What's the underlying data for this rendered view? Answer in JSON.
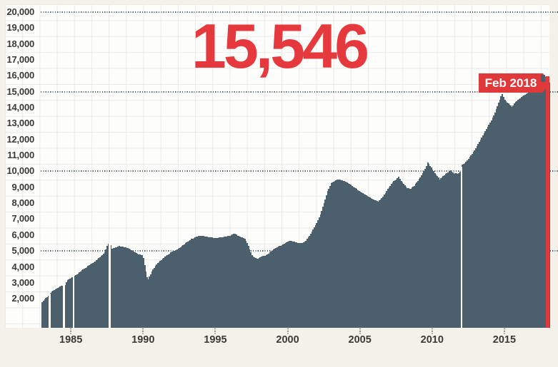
{
  "counter": {
    "value": "15,546"
  },
  "badge": {
    "label": "Feb 2018"
  },
  "colors": {
    "background": "#f4f1ea",
    "plot_background": "#fdfdfb",
    "bars": "#4c5f6c",
    "accent_red": "#e0393c",
    "counter_red": "#e5393e",
    "axis_text": "#3a3936",
    "dotted_gridline": "#54646e",
    "faint_grid": "#edeae2"
  },
  "axis": {
    "y_labels": [
      "20,000",
      "19,000",
      "18,000",
      "17,000",
      "16,000",
      "15,000",
      "14,000",
      "13,000",
      "12,000",
      "11,000",
      "10,000",
      "9,000",
      "8,000",
      "7,000",
      "6,000",
      "5,000",
      "4,000",
      "3,000",
      "2,000"
    ],
    "dotted_gridline_values": [
      20000,
      15000,
      10000,
      5000
    ],
    "x_labels": [
      "1985",
      "1990",
      "1995",
      "2000",
      "2005",
      "2010",
      "2015"
    ]
  },
  "chart_data": {
    "type": "bar",
    "title": "15,546",
    "annotation": "Feb 2018",
    "x_start": "1983-01",
    "x_end": "2018-02",
    "x_step_months": 1,
    "ylim": [
      0,
      20000
    ],
    "grid": true,
    "legend": "none",
    "final_value": 15546,
    "gap_month_indices": [
      6,
      18,
      26,
      56,
      348
    ],
    "values": [
      1770,
      1860,
      1950,
      2040,
      2120,
      2210,
      2300,
      2380,
      2450,
      2500,
      2550,
      2600,
      2650,
      2690,
      2730,
      2760,
      2800,
      2820,
      2850,
      2870,
      3030,
      3180,
      3220,
      3260,
      3300,
      3350,
      3400,
      3450,
      3500,
      3550,
      3600,
      3670,
      3730,
      3800,
      3850,
      3900,
      3950,
      4000,
      4050,
      4100,
      4150,
      4200,
      4250,
      4300,
      4350,
      4410,
      4480,
      4540,
      4600,
      4680,
      4750,
      4830,
      4900,
      5100,
      5300,
      5450,
      5450,
      5350,
      5150,
      5180,
      5200,
      5230,
      5250,
      5280,
      5300,
      5290,
      5280,
      5260,
      5250,
      5230,
      5200,
      5180,
      5150,
      5100,
      5050,
      5000,
      4950,
      4910,
      4880,
      4840,
      4800,
      4780,
      4760,
      4750,
      4550,
      4100,
      3700,
      3350,
      3200,
      3380,
      3550,
      3700,
      3850,
      3950,
      4050,
      4150,
      4250,
      4310,
      4380,
      4440,
      4500,
      4560,
      4630,
      4690,
      4750,
      4800,
      4850,
      4900,
      4950,
      4990,
      5030,
      5060,
      5100,
      5150,
      5200,
      5250,
      5300,
      5360,
      5430,
      5490,
      5550,
      5600,
      5650,
      5700,
      5750,
      5790,
      5830,
      5860,
      5900,
      5910,
      5930,
      5940,
      5950,
      5940,
      5930,
      5910,
      5900,
      5890,
      5880,
      5860,
      5850,
      5840,
      5830,
      5810,
      5800,
      5810,
      5830,
      5840,
      5850,
      5860,
      5880,
      5890,
      5900,
      5910,
      5930,
      5940,
      5950,
      5990,
      6030,
      6060,
      6100,
      6030,
      5950,
      5930,
      5900,
      5880,
      5850,
      5800,
      5750,
      5650,
      5500,
      5300,
      5100,
      4900,
      4750,
      4650,
      4600,
      4550,
      4520,
      4520,
      4550,
      4600,
      4650,
      4700,
      4700,
      4700,
      4750,
      4800,
      4850,
      4900,
      4950,
      5020,
      5100,
      5140,
      5180,
      5220,
      5260,
      5300,
      5340,
      5380,
      5420,
      5460,
      5500,
      5550,
      5600,
      5620,
      5650,
      5630,
      5600,
      5580,
      5550,
      5530,
      5500,
      5500,
      5500,
      5500,
      5500,
      5550,
      5600,
      5650,
      5750,
      5850,
      5950,
      6080,
      6220,
      6350,
      6480,
      6620,
      6750,
      6930,
      7120,
      7300,
      7530,
      7770,
      8000,
      8250,
      8500,
      8750,
      8920,
      9080,
      9250,
      9300,
      9350,
      9400,
      9430,
      9470,
      9500,
      9480,
      9450,
      9430,
      9400,
      9380,
      9350,
      9300,
      9250,
      9200,
      9150,
      9100,
      9050,
      8990,
      8930,
      8880,
      8820,
      8760,
      8700,
      8660,
      8620,
      8580,
      8530,
      8490,
      8450,
      8410,
      8370,
      8330,
      8280,
      8240,
      8200,
      8170,
      8130,
      8100,
      8170,
      8230,
      8300,
      8420,
      8530,
      8650,
      8770,
      8880,
      9000,
      9100,
      9200,
      9300,
      9370,
      9430,
      9500,
      9580,
      9650,
      9530,
      9400,
      9300,
      9200,
      9120,
      9030,
      8950,
      8930,
      8910,
      8900,
      8970,
      9030,
      9100,
      9200,
      9300,
      9400,
      9520,
      9630,
      9750,
      9880,
      10020,
      10150,
      10350,
      10550,
      10450,
      10350,
      10230,
      10100,
      10000,
      9900,
      9800,
      9720,
      9630,
      9500,
      9550,
      9620,
      9700,
      9770,
      9830,
      9900,
      9950,
      10000,
      10050,
      9980,
      9920,
      9850,
      9870,
      9880,
      9850,
      9900,
      9980,
      10250,
      10400,
      10450,
      10500,
      10600,
      10700,
      10800,
      10900,
      11000,
      11100,
      11220,
      11330,
      11450,
      11580,
      11720,
      11850,
      11980,
      12120,
      12250,
      12380,
      12520,
      12650,
      12780,
      12920,
      13050,
      13200,
      13350,
      13500,
      13700,
      13900,
      14100,
      14300,
      14500,
      14700,
      14830,
      14670,
      14500,
      14420,
      14330,
      14250,
      14180,
      14120,
      14050,
      14150,
      14250,
      14350,
      14420,
      14480,
      14550,
      14600,
      14650,
      14700,
      14750,
      14800,
      14850,
      14880,
      14920,
      14950,
      14980,
      15020,
      15050,
      15100,
      15150,
      15200,
      15250,
      15300,
      15350,
      15420,
      15480,
      15550,
      15630,
      15700,
      15800,
      15546
    ]
  }
}
